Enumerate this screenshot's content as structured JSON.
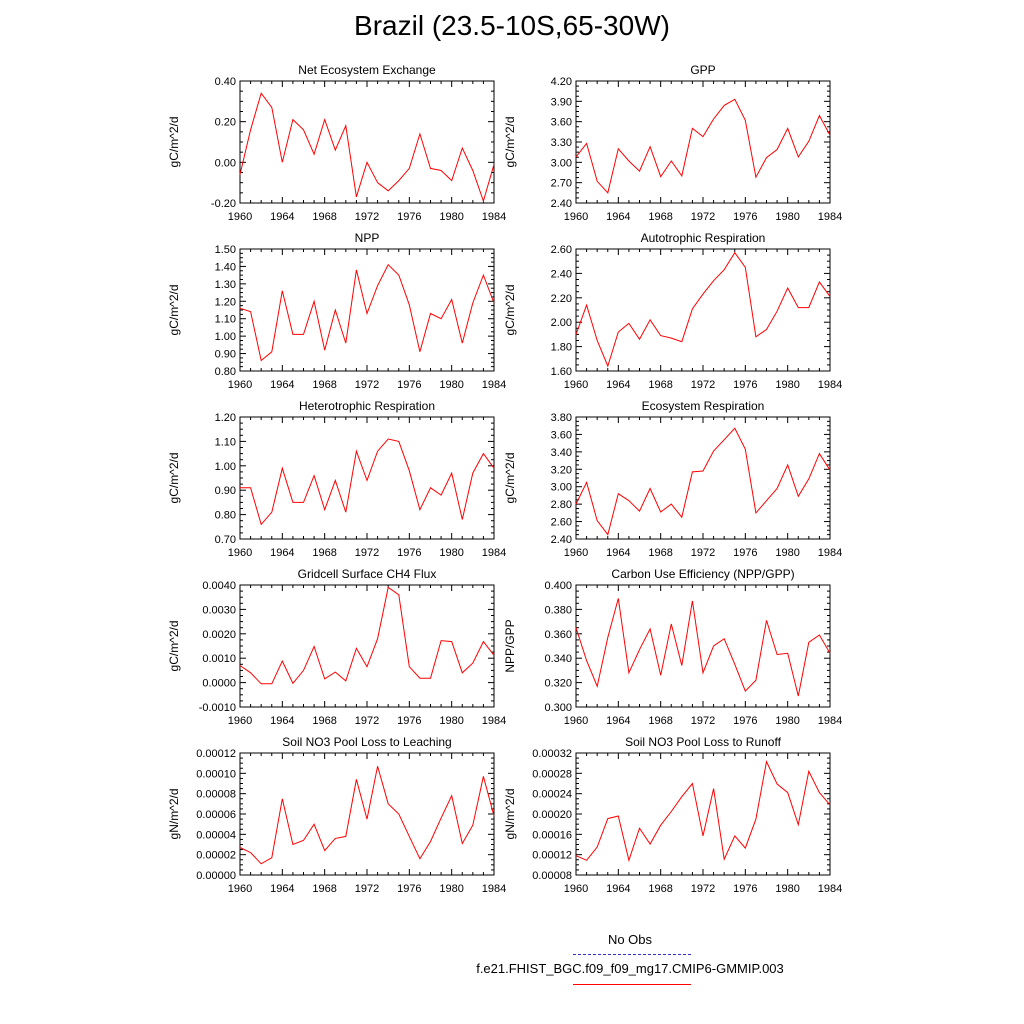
{
  "title": "Brazil (23.5-10S,65-30W)",
  "legend": {
    "items": [
      {
        "label": "No Obs",
        "color": "#0000cc",
        "style": "dashed"
      },
      {
        "label": "f.e21.FHIST_BGC.f09_f09_mg17.CMIP6-GMMIP.003",
        "color": "#ff0000",
        "style": "solid"
      }
    ]
  },
  "chart_data": [
    {
      "type": "line",
      "title": "Net Ecosystem Exchange",
      "xlabel": "",
      "ylabel": "gC/m^2/d",
      "xlim": [
        1960,
        1984
      ],
      "ylim": [
        -0.2,
        0.4
      ],
      "xticks": [
        1960,
        1964,
        1968,
        1972,
        1976,
        1980,
        1984
      ],
      "yticks": [
        "-0.20",
        "0.00",
        "0.20",
        "0.40"
      ],
      "series": [
        {
          "color": "#ff0000",
          "x": [
            1960,
            1961,
            1962,
            1963,
            1964,
            1965,
            1966,
            1967,
            1968,
            1969,
            1970,
            1971,
            1972,
            1973,
            1974,
            1975,
            1976,
            1977,
            1978,
            1979,
            1980,
            1981,
            1982,
            1983,
            1984
          ],
          "y": [
            -0.06,
            0.16,
            0.34,
            0.27,
            0.0,
            0.21,
            0.16,
            0.04,
            0.21,
            0.06,
            0.18,
            -0.17,
            0.0,
            -0.1,
            -0.14,
            -0.09,
            -0.03,
            0.14,
            -0.03,
            -0.04,
            -0.09,
            0.07,
            -0.04,
            -0.19,
            -0.01
          ]
        }
      ]
    },
    {
      "type": "line",
      "title": "GPP",
      "xlabel": "",
      "ylabel": "gC/m^2/d",
      "xlim": [
        1960,
        1984
      ],
      "ylim": [
        2.4,
        4.2
      ],
      "xticks": [
        1960,
        1964,
        1968,
        1972,
        1976,
        1980,
        1984
      ],
      "yticks": [
        "2.40",
        "2.70",
        "3.00",
        "3.30",
        "3.60",
        "3.90",
        "4.20"
      ],
      "series": [
        {
          "color": "#ff0000",
          "x": [
            1960,
            1961,
            1962,
            1963,
            1964,
            1965,
            1966,
            1967,
            1968,
            1969,
            1970,
            1971,
            1972,
            1973,
            1974,
            1975,
            1976,
            1977,
            1978,
            1979,
            1980,
            1981,
            1982,
            1983,
            1984
          ],
          "y": [
            3.08,
            3.28,
            2.72,
            2.55,
            3.2,
            3.02,
            2.87,
            3.23,
            2.79,
            3.02,
            2.8,
            3.5,
            3.38,
            3.64,
            3.84,
            3.93,
            3.62,
            2.78,
            3.07,
            3.19,
            3.5,
            3.08,
            3.31,
            3.69,
            3.4
          ]
        }
      ]
    },
    {
      "type": "line",
      "title": "NPP",
      "xlabel": "",
      "ylabel": "gC/m^2/d",
      "xlim": [
        1960,
        1984
      ],
      "ylim": [
        0.8,
        1.5
      ],
      "xticks": [
        1960,
        1964,
        1968,
        1972,
        1976,
        1980,
        1984
      ],
      "yticks": [
        "0.80",
        "0.90",
        "1.00",
        "1.10",
        "1.20",
        "1.30",
        "1.40",
        "1.50"
      ],
      "series": [
        {
          "color": "#ff0000",
          "x": [
            1960,
            1961,
            1962,
            1963,
            1964,
            1965,
            1966,
            1967,
            1968,
            1969,
            1970,
            1971,
            1972,
            1973,
            1974,
            1975,
            1976,
            1977,
            1978,
            1979,
            1980,
            1981,
            1982,
            1983,
            1984
          ],
          "y": [
            1.16,
            1.14,
            0.86,
            0.91,
            1.26,
            1.01,
            1.01,
            1.2,
            0.92,
            1.15,
            0.96,
            1.38,
            1.13,
            1.29,
            1.41,
            1.35,
            1.18,
            0.91,
            1.13,
            1.1,
            1.21,
            0.96,
            1.19,
            1.35,
            1.19
          ]
        }
      ]
    },
    {
      "type": "line",
      "title": "Autotrophic Respiration",
      "xlabel": "",
      "ylabel": "gC/m^2/d",
      "xlim": [
        1960,
        1984
      ],
      "ylim": [
        1.6,
        2.6
      ],
      "xticks": [
        1960,
        1964,
        1968,
        1972,
        1976,
        1980,
        1984
      ],
      "yticks": [
        "1.60",
        "1.80",
        "2.00",
        "2.20",
        "2.40",
        "2.60"
      ],
      "series": [
        {
          "color": "#ff0000",
          "x": [
            1960,
            1961,
            1962,
            1963,
            1964,
            1965,
            1966,
            1967,
            1968,
            1969,
            1970,
            1971,
            1972,
            1973,
            1974,
            1975,
            1976,
            1977,
            1978,
            1979,
            1980,
            1981,
            1982,
            1983,
            1984
          ],
          "y": [
            1.9,
            2.14,
            1.85,
            1.64,
            1.92,
            1.99,
            1.86,
            2.02,
            1.89,
            1.87,
            1.84,
            2.11,
            2.23,
            2.34,
            2.43,
            2.57,
            2.45,
            1.88,
            1.94,
            2.09,
            2.28,
            2.12,
            2.12,
            2.33,
            2.21
          ]
        }
      ]
    },
    {
      "type": "line",
      "title": "Heterotrophic Respiration",
      "xlabel": "",
      "ylabel": "gC/m^2/d",
      "xlim": [
        1960,
        1984
      ],
      "ylim": [
        0.7,
        1.2
      ],
      "xticks": [
        1960,
        1964,
        1968,
        1972,
        1976,
        1980,
        1984
      ],
      "yticks": [
        "0.70",
        "0.80",
        "0.90",
        "1.00",
        "1.10",
        "1.20"
      ],
      "series": [
        {
          "color": "#ff0000",
          "x": [
            1960,
            1961,
            1962,
            1963,
            1964,
            1965,
            1966,
            1967,
            1968,
            1969,
            1970,
            1971,
            1972,
            1973,
            1974,
            1975,
            1976,
            1977,
            1978,
            1979,
            1980,
            1981,
            1982,
            1983,
            1984
          ],
          "y": [
            0.91,
            0.91,
            0.76,
            0.81,
            0.99,
            0.85,
            0.85,
            0.96,
            0.82,
            0.94,
            0.81,
            1.06,
            0.94,
            1.06,
            1.11,
            1.1,
            0.98,
            0.82,
            0.91,
            0.88,
            0.97,
            0.78,
            0.97,
            1.05,
            0.99
          ]
        }
      ]
    },
    {
      "type": "line",
      "title": "Ecosystem Respiration",
      "xlabel": "",
      "ylabel": "gC/m^2/d",
      "xlim": [
        1960,
        1984
      ],
      "ylim": [
        2.4,
        3.8
      ],
      "xticks": [
        1960,
        1964,
        1968,
        1972,
        1976,
        1980,
        1984
      ],
      "yticks": [
        "2.40",
        "2.60",
        "2.80",
        "3.00",
        "3.20",
        "3.40",
        "3.60",
        "3.80"
      ],
      "series": [
        {
          "color": "#ff0000",
          "x": [
            1960,
            1961,
            1962,
            1963,
            1964,
            1965,
            1966,
            1967,
            1968,
            1969,
            1970,
            1971,
            1972,
            1973,
            1974,
            1975,
            1976,
            1977,
            1978,
            1979,
            1980,
            1981,
            1982,
            1983,
            1984
          ],
          "y": [
            2.8,
            3.05,
            2.61,
            2.45,
            2.92,
            2.84,
            2.72,
            2.98,
            2.71,
            2.8,
            2.65,
            3.17,
            3.18,
            3.41,
            3.54,
            3.67,
            3.43,
            2.7,
            2.84,
            2.98,
            3.25,
            2.89,
            3.09,
            3.38,
            3.19
          ]
        }
      ]
    },
    {
      "type": "line",
      "title": "Gridcell Surface CH4 Flux",
      "xlabel": "",
      "ylabel": "gC/m^2/d",
      "xlim": [
        1960,
        1984
      ],
      "ylim": [
        -0.001,
        0.004
      ],
      "xticks": [
        1960,
        1964,
        1968,
        1972,
        1976,
        1980,
        1984
      ],
      "yticks": [
        "-0.0010",
        "0.0000",
        "0.0010",
        "0.0020",
        "0.0030",
        "0.0040"
      ],
      "series": [
        {
          "color": "#ff0000",
          "x": [
            1960,
            1961,
            1962,
            1963,
            1964,
            1965,
            1966,
            1967,
            1968,
            1969,
            1970,
            1971,
            1972,
            1973,
            1974,
            1975,
            1976,
            1977,
            1978,
            1979,
            1980,
            1981,
            1982,
            1983,
            1984
          ],
          "y": [
            0.0007,
            0.0004,
            -5e-05,
            -5e-05,
            0.00088,
            -3e-05,
            0.0005,
            0.00148,
            0.00015,
            0.00043,
            7e-05,
            0.0014,
            0.00065,
            0.0018,
            0.0039,
            0.0036,
            0.00065,
            0.00018,
            0.00018,
            0.00172,
            0.00168,
            0.0004,
            0.0008,
            0.00168,
            0.00112
          ]
        }
      ]
    },
    {
      "type": "line",
      "title": "Carbon Use Efficiency (NPP/GPP)",
      "xlabel": "",
      "ylabel": "NPP/GPP",
      "xlim": [
        1960,
        1984
      ],
      "ylim": [
        0.3,
        0.4
      ],
      "xticks": [
        1960,
        1964,
        1968,
        1972,
        1976,
        1980,
        1984
      ],
      "yticks": [
        "0.300",
        "0.320",
        "0.340",
        "0.360",
        "0.380",
        "0.400"
      ],
      "series": [
        {
          "color": "#ff0000",
          "x": [
            1960,
            1961,
            1962,
            1963,
            1964,
            1965,
            1966,
            1967,
            1968,
            1969,
            1970,
            1971,
            1972,
            1973,
            1974,
            1975,
            1976,
            1977,
            1978,
            1979,
            1980,
            1981,
            1982,
            1983,
            1984
          ],
          "y": [
            0.365,
            0.338,
            0.317,
            0.357,
            0.389,
            0.328,
            0.347,
            0.364,
            0.326,
            0.368,
            0.334,
            0.387,
            0.328,
            0.35,
            0.356,
            0.335,
            0.313,
            0.322,
            0.371,
            0.343,
            0.344,
            0.309,
            0.353,
            0.359,
            0.344
          ]
        }
      ]
    },
    {
      "type": "line",
      "title": "Soil NO3 Pool Loss to Leaching",
      "xlabel": "",
      "ylabel": "gN/m^2/d",
      "xlim": [
        1960,
        1984
      ],
      "ylim": [
        0,
        0.00012
      ],
      "xticks": [
        1960,
        1964,
        1968,
        1972,
        1976,
        1980,
        1984
      ],
      "yticks": [
        "0.00000",
        "0.00002",
        "0.00004",
        "0.00006",
        "0.00008",
        "0.00010",
        "0.00012"
      ],
      "series": [
        {
          "color": "#ff0000",
          "x": [
            1960,
            1961,
            1962,
            1963,
            1964,
            1965,
            1966,
            1967,
            1968,
            1969,
            1970,
            1971,
            1972,
            1973,
            1974,
            1975,
            1976,
            1977,
            1978,
            1979,
            1980,
            1981,
            1982,
            1983,
            1984
          ],
          "y": [
            2.7e-05,
            2.2e-05,
            1.1e-05,
            1.7e-05,
            7.5e-05,
            3e-05,
            3.4e-05,
            5e-05,
            2.4e-05,
            3.6e-05,
            3.8e-05,
            9.4e-05,
            5.5e-05,
            0.000107,
            7e-05,
            6e-05,
            3.8e-05,
            1.6e-05,
            3.3e-05,
            5.6e-05,
            7.8e-05,
            3.1e-05,
            4.9e-05,
            9.7e-05,
            5.8e-05
          ]
        }
      ]
    },
    {
      "type": "line",
      "title": "Soil NO3 Pool Loss to Runoff",
      "xlabel": "",
      "ylabel": "gN/m^2/d",
      "xlim": [
        1960,
        1984
      ],
      "ylim": [
        8e-05,
        0.00032
      ],
      "xticks": [
        1960,
        1964,
        1968,
        1972,
        1976,
        1980,
        1984
      ],
      "yticks": [
        "0.00008",
        "0.00012",
        "0.00016",
        "0.00020",
        "0.00024",
        "0.00028",
        "0.00032"
      ],
      "series": [
        {
          "color": "#ff0000",
          "x": [
            1960,
            1961,
            1962,
            1963,
            1964,
            1965,
            1966,
            1967,
            1968,
            1969,
            1970,
            1971,
            1972,
            1973,
            1974,
            1975,
            1976,
            1977,
            1978,
            1979,
            1980,
            1981,
            1982,
            1983,
            1984
          ],
          "y": [
            0.000118,
            0.000109,
            0.000135,
            0.000191,
            0.000196,
            0.000109,
            0.000172,
            0.000141,
            0.000178,
            0.000205,
            0.000234,
            0.00026,
            0.000157,
            0.00025,
            0.000111,
            0.000157,
            0.000133,
            0.00019,
            0.000303,
            0.000259,
            0.000242,
            0.000179,
            0.000284,
            0.000242,
            0.000218
          ]
        }
      ]
    }
  ]
}
